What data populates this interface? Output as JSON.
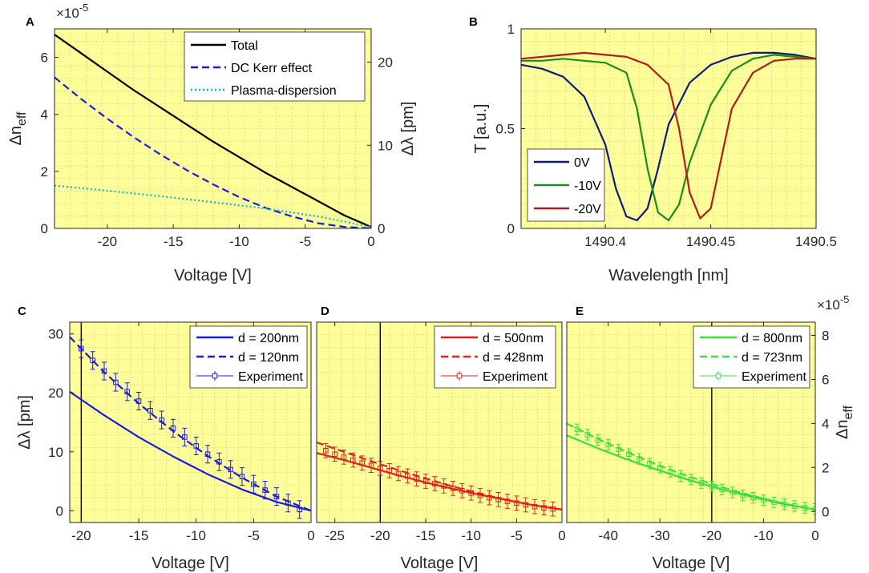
{
  "panel_letters": [
    "A",
    "B",
    "C",
    "D",
    "E"
  ],
  "colors": {
    "plot_bg": "#FFFF99",
    "black": "#000000",
    "blue": "#1B1BDD",
    "cyan": "#13B5CC",
    "navy": "#0E1B7E",
    "green": "#198C19",
    "dark_red": "#B41C1C",
    "red": "#E02020",
    "light_green": "#3AE03A"
  },
  "chart_data": [
    {
      "id": "A",
      "type": "line",
      "xlabel": "Voltage [V]",
      "ylabel": "Δn_eff",
      "ylabel_right": "Δλ [pm]",
      "xlim": [
        -24,
        0
      ],
      "ylim": [
        0,
        7
      ],
      "ylim_right": [
        0,
        24
      ],
      "exponent_label": "×10",
      "exponent_power": "-5",
      "xticks": [
        -20,
        -15,
        -10,
        -5,
        0
      ],
      "xtick_labels": [
        "-20",
        "-15",
        "-10",
        "-5",
        "0"
      ],
      "yticks": [
        0,
        2,
        4,
        6
      ],
      "ytick_labels": [
        "0",
        "2",
        "4",
        "6"
      ],
      "yticks_right": [
        0,
        10,
        20
      ],
      "ytick_labels_right": [
        "0",
        "10",
        "20"
      ],
      "series": [
        {
          "name": "Total",
          "style": "solid",
          "color": "#000000",
          "x": [
            -24,
            -22,
            -20,
            -18,
            -16,
            -14,
            -12,
            -10,
            -8,
            -6,
            -4,
            -2,
            0
          ],
          "y": [
            6.8,
            6.15,
            5.5,
            4.85,
            4.25,
            3.65,
            3.05,
            2.5,
            1.95,
            1.45,
            0.95,
            0.45,
            0.05
          ]
        },
        {
          "name": "DC Kerr effect",
          "style": "dashed",
          "color": "#1B1BDD",
          "x": [
            -24,
            -22,
            -20,
            -18,
            -16,
            -14,
            -12,
            -10,
            -8,
            -6,
            -4,
            -2,
            0
          ],
          "y": [
            5.3,
            4.55,
            3.85,
            3.2,
            2.6,
            2.05,
            1.55,
            1.1,
            0.72,
            0.42,
            0.18,
            0.05,
            0.0
          ]
        },
        {
          "name": "Plasma-dispersion",
          "style": "dotted",
          "color": "#13B5CC",
          "x": [
            -24,
            -20,
            -16,
            -12,
            -8,
            -4,
            0
          ],
          "y": [
            1.5,
            1.32,
            1.13,
            0.92,
            0.7,
            0.42,
            0.05
          ]
        }
      ],
      "legend": [
        "Total",
        "DC Kerr effect",
        "Plasma-dispersion"
      ],
      "legend_position": "top-right"
    },
    {
      "id": "B",
      "type": "line",
      "xlabel": "Wavelength [nm]",
      "ylabel": "T [a.u.]",
      "xlim": [
        1490.36,
        1490.5
      ],
      "ylim": [
        0,
        1
      ],
      "xticks": [
        1490.4,
        1490.45,
        1490.5
      ],
      "xtick_labels": [
        "1490.4",
        "1490.45",
        "1490.5"
      ],
      "yticks": [
        0,
        0.5,
        1
      ],
      "ytick_labels": [
        "0",
        "0.5",
        "1"
      ],
      "series": [
        {
          "name": "0V",
          "color": "#0E1B7E",
          "x": [
            1490.36,
            1490.37,
            1490.38,
            1490.39,
            1490.4,
            1490.405,
            1490.41,
            1490.415,
            1490.42,
            1490.425,
            1490.43,
            1490.44,
            1490.45,
            1490.46,
            1490.47,
            1490.48,
            1490.49,
            1490.5
          ],
          "y": [
            0.82,
            0.8,
            0.76,
            0.66,
            0.42,
            0.2,
            0.06,
            0.04,
            0.1,
            0.3,
            0.52,
            0.73,
            0.82,
            0.86,
            0.88,
            0.88,
            0.87,
            0.85
          ]
        },
        {
          "name": "-10V",
          "color": "#198C19",
          "x": [
            1490.36,
            1490.37,
            1490.38,
            1490.39,
            1490.4,
            1490.41,
            1490.415,
            1490.42,
            1490.425,
            1490.43,
            1490.435,
            1490.44,
            1490.45,
            1490.46,
            1490.47,
            1490.48,
            1490.49,
            1490.5
          ],
          "y": [
            0.84,
            0.84,
            0.85,
            0.84,
            0.83,
            0.78,
            0.6,
            0.3,
            0.08,
            0.04,
            0.12,
            0.33,
            0.62,
            0.79,
            0.85,
            0.87,
            0.86,
            0.85
          ]
        },
        {
          "name": "-20V",
          "color": "#B41C1C",
          "x": [
            1490.36,
            1490.37,
            1490.38,
            1490.39,
            1490.4,
            1490.41,
            1490.42,
            1490.43,
            1490.435,
            1490.44,
            1490.445,
            1490.45,
            1490.455,
            1490.46,
            1490.47,
            1490.48,
            1490.49,
            1490.5
          ],
          "y": [
            0.85,
            0.86,
            0.87,
            0.88,
            0.87,
            0.86,
            0.82,
            0.72,
            0.5,
            0.18,
            0.05,
            0.1,
            0.35,
            0.6,
            0.78,
            0.84,
            0.85,
            0.85
          ]
        }
      ],
      "legend": [
        "0V",
        "-10V",
        "-20V"
      ],
      "legend_position": "bottom-left"
    },
    {
      "id": "C",
      "type": "line",
      "xlabel": "Voltage [V]",
      "ylabel": "Δλ [pm]",
      "xlim": [
        -21,
        0
      ],
      "ylim": [
        -2,
        32
      ],
      "vline": -20,
      "xticks": [
        -20,
        -15,
        -10,
        -5,
        0
      ],
      "xtick_labels": [
        "-20",
        "-15",
        "-10",
        "-5",
        "0"
      ],
      "yticks": [
        0,
        10,
        20,
        30
      ],
      "ytick_labels": [
        "0",
        "10",
        "20",
        "30"
      ],
      "series": [
        {
          "name": "d = 200nm",
          "style": "solid",
          "color": "#1B1BDD",
          "x": [
            -21,
            -18,
            -15,
            -12,
            -9,
            -6,
            -3,
            0
          ],
          "y": [
            20.2,
            16.2,
            12.5,
            9.2,
            6.2,
            3.6,
            1.5,
            0
          ]
        },
        {
          "name": "d = 120nm",
          "style": "dashed",
          "color": "#1B1BDD",
          "x": [
            -21,
            -18,
            -15,
            -12,
            -9,
            -6,
            -3,
            0
          ],
          "y": [
            29.5,
            23.5,
            18.2,
            13.5,
            9.3,
            5.6,
            2.4,
            0
          ]
        },
        {
          "name": "Experiment",
          "style": "markers",
          "color": "#1B1BDD",
          "x": [
            -20,
            -19,
            -18,
            -17,
            -16,
            -15,
            -14,
            -13,
            -12,
            -11,
            -10,
            -9,
            -8,
            -7,
            -6,
            -5,
            -4,
            -3,
            -2,
            -1
          ],
          "y": [
            27.5,
            25.5,
            23.7,
            21.8,
            20.2,
            18.6,
            17.0,
            15.4,
            14.0,
            12.5,
            11.0,
            9.6,
            8.3,
            7.0,
            5.8,
            4.5,
            3.5,
            2.4,
            1.3,
            0.2
          ],
          "err": 1.5
        }
      ],
      "legend": [
        "d = 200nm",
        "d = 120nm",
        "Experiment"
      ],
      "legend_position": "top-right"
    },
    {
      "id": "D",
      "type": "line",
      "xlabel": "Voltage [V]",
      "xlim": [
        -27,
        0
      ],
      "ylim": [
        -2,
        32
      ],
      "vline": -20,
      "xticks": [
        -25,
        -20,
        -15,
        -10,
        -5,
        0
      ],
      "xtick_labels": [
        "-25",
        "-20",
        "-15",
        "-10",
        "-5",
        "0"
      ],
      "series": [
        {
          "name": "d = 500nm",
          "style": "solid",
          "color": "#E02020",
          "x": [
            -27,
            -24,
            -21,
            -18,
            -15,
            -12,
            -9,
            -6,
            -3,
            0
          ],
          "y": [
            9.8,
            8.6,
            7.3,
            6.0,
            4.8,
            3.7,
            2.7,
            1.8,
            0.9,
            0.2
          ]
        },
        {
          "name": "d = 428nm",
          "style": "dashed",
          "color": "#E02020",
          "x": [
            -27,
            -24,
            -21,
            -18,
            -15,
            -12,
            -9,
            -6,
            -3,
            0
          ],
          "y": [
            11.6,
            10.0,
            8.4,
            6.9,
            5.5,
            4.1,
            2.9,
            1.8,
            0.9,
            0.2
          ]
        },
        {
          "name": "Experiment",
          "style": "markers",
          "color": "#E02020",
          "x": [
            -26,
            -25,
            -24,
            -23,
            -22,
            -21,
            -20,
            -19,
            -18,
            -17,
            -16,
            -15,
            -14,
            -13,
            -12,
            -11,
            -10,
            -9,
            -8,
            -7,
            -6,
            -5,
            -4,
            -3,
            -2,
            -1
          ],
          "y": [
            10.2,
            9.6,
            9.1,
            8.6,
            8.1,
            7.7,
            7.2,
            6.8,
            6.3,
            5.9,
            5.4,
            5.0,
            4.6,
            4.2,
            3.8,
            3.4,
            3.0,
            2.6,
            2.2,
            1.9,
            1.6,
            1.3,
            1.0,
            0.7,
            0.5,
            0.3
          ],
          "err": 1.2
        }
      ],
      "legend": [
        "d = 500nm",
        "d = 428nm",
        "Experiment"
      ],
      "legend_position": "top-right"
    },
    {
      "id": "E",
      "type": "line",
      "xlabel": "Voltage [V]",
      "ylabel_right": "Δn_eff",
      "xlim": [
        -48,
        0
      ],
      "ylim": [
        -2,
        32
      ],
      "ylim_right": [
        -0.5,
        8.6
      ],
      "exponent_label": "×10",
      "exponent_power": "-5",
      "vline": -20,
      "xticks": [
        -40,
        -30,
        -20,
        -10,
        0
      ],
      "xtick_labels": [
        "-40",
        "-30",
        "-20",
        "-10",
        "0"
      ],
      "yticks_right": [
        0,
        2,
        4,
        6,
        8
      ],
      "ytick_labels_right": [
        "0",
        "2",
        "4",
        "6",
        "8"
      ],
      "series": [
        {
          "name": "d = 800nm",
          "style": "solid",
          "color": "#3AE03A",
          "x": [
            -48,
            -42,
            -36,
            -30,
            -24,
            -18,
            -12,
            -6,
            0
          ],
          "y": [
            12.8,
            10.6,
            8.6,
            6.8,
            5.1,
            3.6,
            2.3,
            1.1,
            0.2
          ]
        },
        {
          "name": "d = 723nm",
          "style": "dashed",
          "color": "#3AE03A",
          "x": [
            -48,
            -42,
            -36,
            -30,
            -24,
            -18,
            -12,
            -6,
            0
          ],
          "y": [
            14.8,
            12.2,
            9.8,
            7.6,
            5.7,
            4.0,
            2.5,
            1.2,
            0.2
          ]
        },
        {
          "name": "Experiment",
          "style": "markers",
          "color": "#3AE03A",
          "x": [
            -46,
            -44,
            -42,
            -40,
            -38,
            -36,
            -34,
            -32,
            -30,
            -28,
            -26,
            -24,
            -22,
            -20,
            -18,
            -16,
            -14,
            -12,
            -10,
            -8,
            -6,
            -4,
            -2,
            0
          ],
          "y": [
            13.8,
            12.9,
            12.0,
            11.2,
            10.4,
            9.6,
            8.8,
            8.0,
            7.3,
            6.6,
            5.9,
            5.3,
            4.7,
            4.1,
            3.6,
            3.1,
            2.6,
            2.2,
            1.8,
            1.4,
            1.1,
            0.8,
            0.5,
            0.3
          ],
          "err": 0.9
        }
      ],
      "legend": [
        "d = 800nm",
        "d = 723nm",
        "Experiment"
      ],
      "legend_position": "top-right"
    }
  ]
}
